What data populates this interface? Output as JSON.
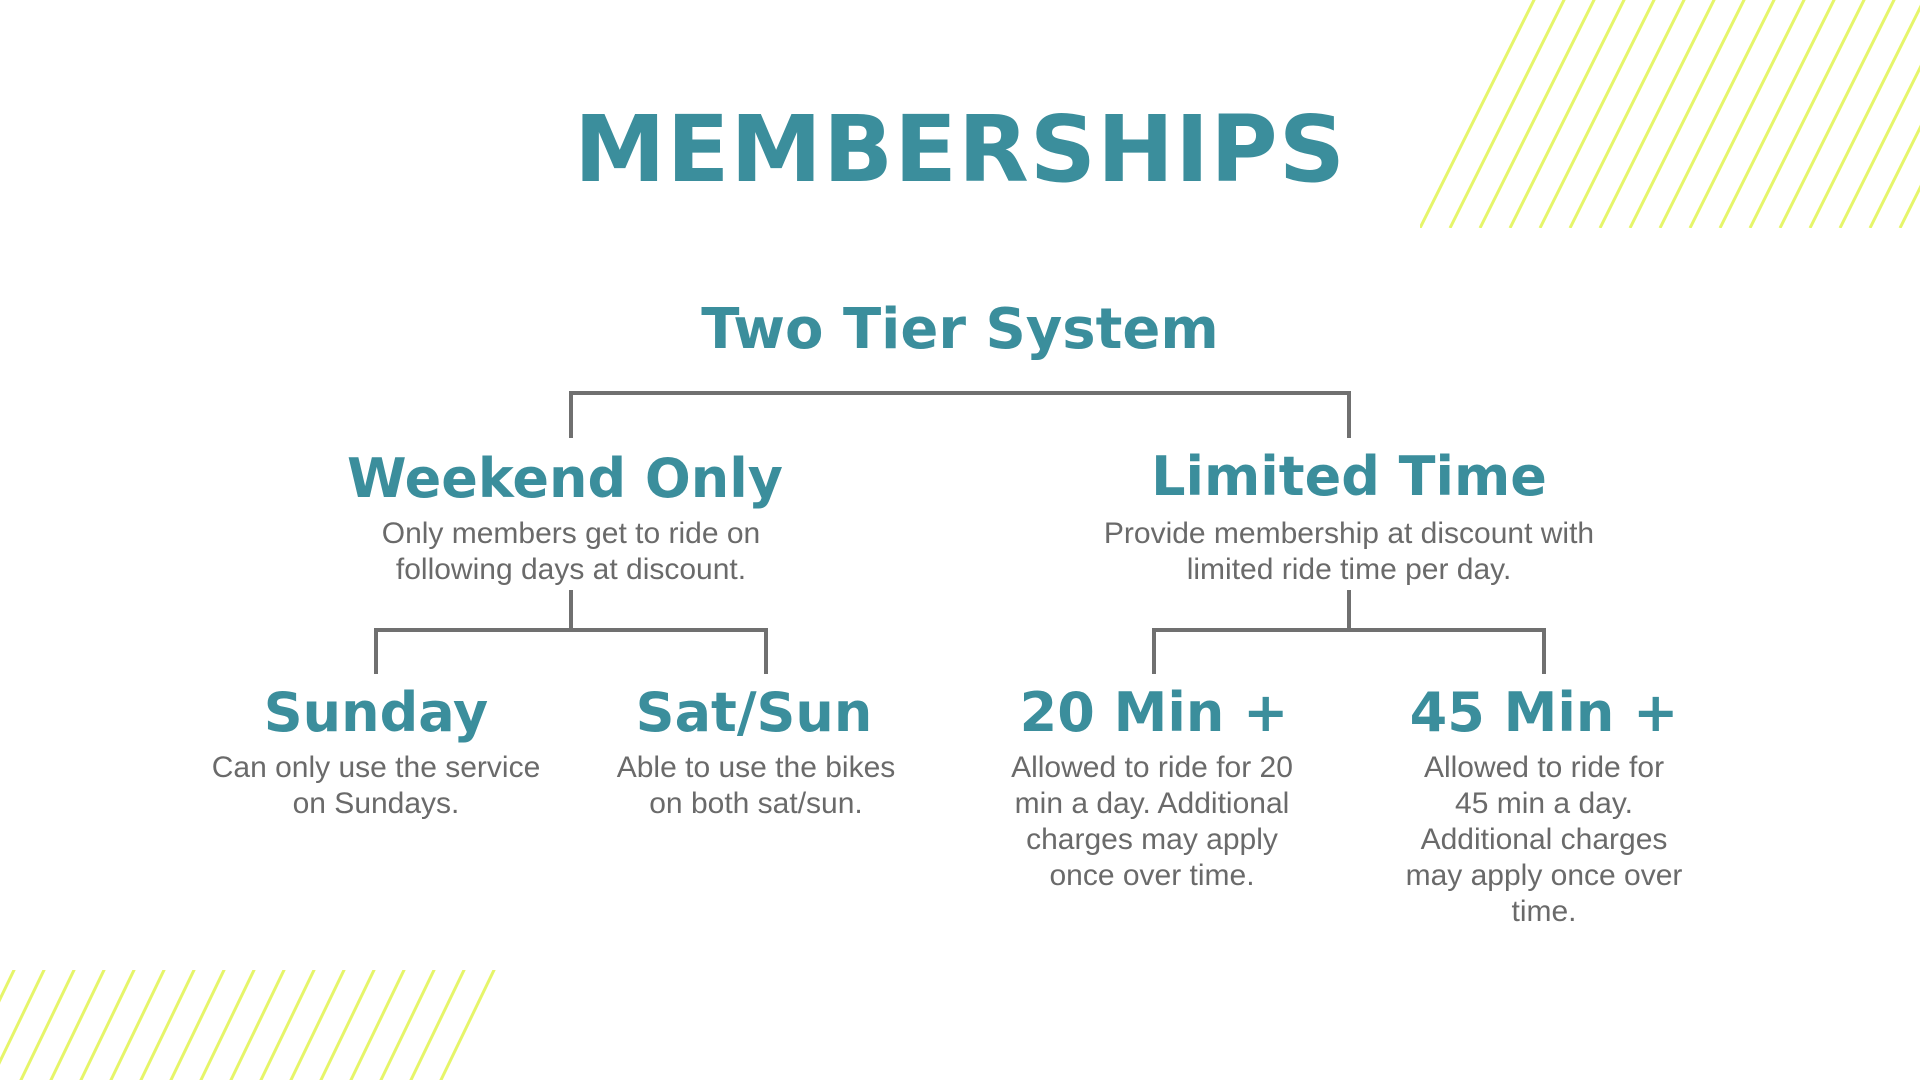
{
  "title": "MEMBERSHIPS",
  "root": {
    "label": "Two Tier System"
  },
  "tiers": [
    {
      "label": "Weekend Only",
      "desc": [
        "Only members get to ride on",
        "following days at discount."
      ],
      "options": [
        {
          "label": "Sunday",
          "desc": [
            "Can only use the service",
            "on Sundays."
          ]
        },
        {
          "label": "Sat/Sun",
          "desc": [
            "Able to use the bikes",
            "on both sat/sun."
          ]
        }
      ]
    },
    {
      "label": "Limited Time",
      "desc": [
        "Provide membership at discount with",
        "limited ride time per day."
      ],
      "options": [
        {
          "label": "20 Min +",
          "desc": [
            "Allowed to ride for 20",
            "min a day. Additional",
            "charges may apply",
            "once over time."
          ]
        },
        {
          "label": "45 Min +",
          "desc": [
            "Allowed to ride for",
            "45 min a day.",
            "Additional charges",
            "may apply once over",
            "time."
          ]
        }
      ]
    }
  ],
  "colors": {
    "heading": "#3b8e9c",
    "body_text": "#6a6a6a",
    "connector": "#707070",
    "stripe": "#e6f56a"
  }
}
